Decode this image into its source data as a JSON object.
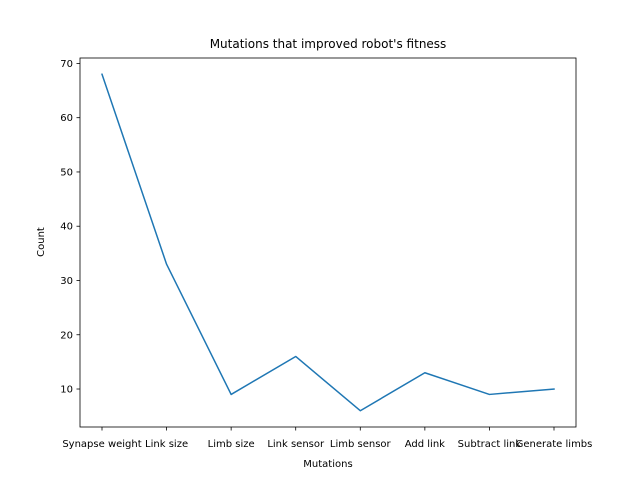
{
  "chart_data": {
    "type": "line",
    "title": "Mutations that improved robot's fitness",
    "xlabel": "Mutations",
    "ylabel": "Count",
    "categories": [
      "Synapse weight",
      "Link size",
      "Limb size",
      "Link sensor",
      "Limb sensor",
      "Add link",
      "Subtract link",
      "Generate limbs"
    ],
    "series": [
      {
        "values": [
          68,
          33,
          9,
          16,
          6,
          13,
          9,
          10
        ]
      }
    ],
    "ylim": [
      3,
      71
    ],
    "yticks": [
      10,
      20,
      30,
      40,
      50,
      60,
      70
    ],
    "grid": false,
    "line_color": "#1f77b4"
  }
}
